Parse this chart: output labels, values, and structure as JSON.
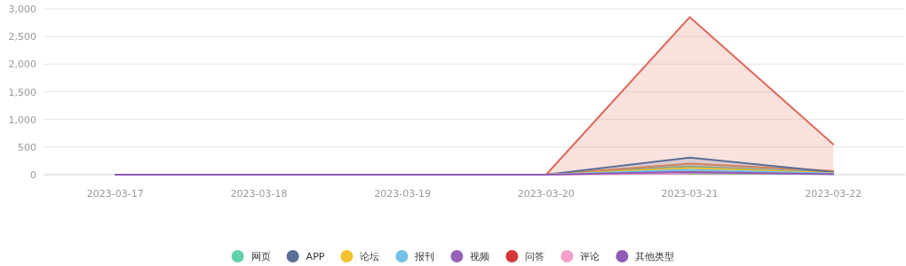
{
  "chart_data": {
    "type": "area",
    "categories": [
      "2023-03-17",
      "2023-03-18",
      "2023-03-19",
      "2023-03-20",
      "2023-03-21",
      "2023-03-22"
    ],
    "ylim": [
      0,
      3000
    ],
    "yticks": [
      0,
      {
        "value": 500,
        "label": "500"
      },
      {
        "value": 1000,
        "label": "1,000"
      },
      {
        "value": 1500,
        "label": "1,500"
      },
      {
        "value": 2000,
        "label": "2,000"
      },
      {
        "value": 2500,
        "label": "2,500"
      },
      {
        "value": 3000,
        "label": "3,000"
      }
    ],
    "grid": "y",
    "legend": "bottom",
    "marker": "none",
    "series": [
      {
        "name": "网页",
        "color": "#5fd3a5",
        "values": [
          null,
          null,
          null,
          0,
          150,
          40
        ]
      },
      {
        "color": "#f0904a",
        "values": [
          null,
          null,
          null,
          0,
          200,
          70
        ]
      },
      {
        "color": "#e0685a",
        "values": [
          null,
          null,
          null,
          0,
          2850,
          550
        ]
      },
      {
        "name": "APP",
        "color": "#5a6e96",
        "values": [
          null,
          null,
          null,
          0,
          310,
          50
        ]
      },
      {
        "name": "论坛",
        "color": "#f2c12e",
        "values": [
          null,
          null,
          null,
          0,
          120,
          30
        ]
      },
      {
        "name": "报刊",
        "color": "#73c0e8",
        "values": [
          null,
          null,
          null,
          0,
          90,
          20
        ]
      },
      {
        "name": "视频",
        "color": "#9562b8",
        "values": [
          null,
          null,
          null,
          null,
          null,
          null
        ]
      },
      {
        "name": "问答",
        "color": "#d4363a",
        "values": [
          null,
          null,
          null,
          null,
          null,
          null
        ]
      },
      {
        "name": "评论",
        "color": "#f4a0c8",
        "values": [
          null,
          null,
          null,
          0,
          20,
          null
        ]
      },
      {
        "name": "其他类型",
        "color": "#8e5bb5",
        "values": [
          0,
          0,
          0,
          0,
          50,
          10
        ]
      }
    ]
  }
}
